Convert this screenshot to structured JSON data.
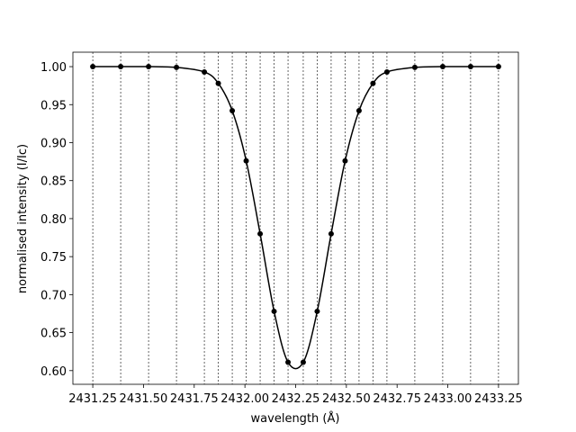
{
  "chart_data": {
    "type": "line",
    "xlabel": "wavelength (Å)",
    "ylabel": "normalised intensity (I/Ic)",
    "x": [
      2431.25,
      2431.3875,
      2431.525,
      2431.6625,
      2431.8,
      2431.86875,
      2431.9375,
      2432.00625,
      2432.075,
      2432.14375,
      2432.2125,
      2432.2875,
      2432.35625,
      2432.425,
      2432.49375,
      2432.5625,
      2432.63125,
      2432.7,
      2432.8375,
      2432.975,
      2433.1125,
      2433.25
    ],
    "series": [
      {
        "color": "#000000",
        "values": [
          1.0,
          1.0,
          1.0,
          0.999,
          0.993,
          0.978,
          0.942,
          0.876,
          0.78,
          0.678,
          0.611,
          0.611,
          0.678,
          0.78,
          0.876,
          0.942,
          0.978,
          0.993,
          0.999,
          1.0,
          1.0,
          1.0
        ]
      }
    ],
    "xlim": [
      2431.152,
      2433.348
    ],
    "ylim": [
      0.582,
      1.019
    ],
    "xticks": [
      2431.25,
      {
        "value": 2431.5,
        "label": "2431.50"
      },
      2431.75,
      {
        "value": 2432.0,
        "label": "2432.00"
      },
      2432.25,
      {
        "value": 2432.5,
        "label": "2432.50"
      },
      2432.75,
      {
        "value": 2433.0,
        "label": "2433.00"
      },
      2433.25
    ],
    "yticks": [
      {
        "value": 0.6,
        "label": "0.60"
      },
      0.65,
      {
        "value": 0.7,
        "label": "0.70"
      },
      0.75,
      {
        "value": 0.8,
        "label": "0.80"
      },
      0.85,
      {
        "value": 0.9,
        "label": "0.90"
      },
      0.95,
      {
        "value": 1.0,
        "label": "1.00"
      }
    ],
    "vlines": true
  }
}
